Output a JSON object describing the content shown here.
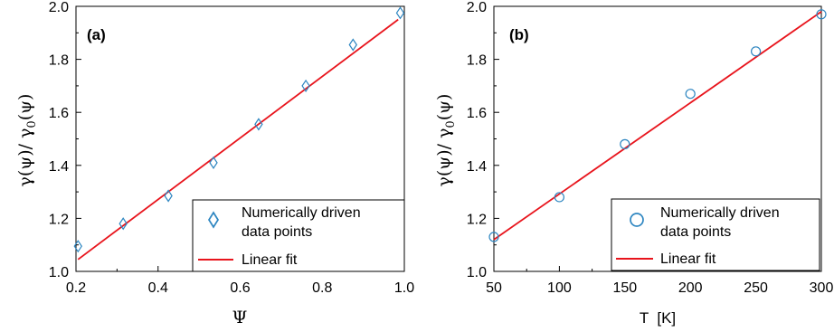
{
  "colors": {
    "points": "#2e86c1",
    "fit_line": "#e8141c",
    "axis": "#000000"
  },
  "chart_data": [
    {
      "type": "scatter",
      "panel_label": "(a)",
      "xlabel": "Ψ",
      "ylabel": "γ(ψ)/ γ0(ψ)",
      "xlim": [
        0.2,
        1.0
      ],
      "ylim": [
        1.0,
        2.0
      ],
      "xticks": [
        "0.2",
        "0.4",
        "0.6",
        "0.8",
        "1.0"
      ],
      "yticks": [
        "1.0",
        "1.2",
        "1.4",
        "1.6",
        "1.8",
        "2.0"
      ],
      "marker": "diamond",
      "legend_position": "bottom-right",
      "series": [
        {
          "name": "Numerically driven data points",
          "x": [
            0.205,
            0.315,
            0.425,
            0.535,
            0.645,
            0.76,
            0.875,
            0.99
          ],
          "y": [
            1.095,
            1.18,
            1.285,
            1.41,
            1.555,
            1.7,
            1.855,
            1.975
          ]
        },
        {
          "name": "Linear fit",
          "x": [
            0.205,
            0.985
          ],
          "y": [
            1.045,
            1.95
          ]
        }
      ],
      "legend": [
        "Numerically driven",
        "data points",
        "Linear fit"
      ]
    },
    {
      "type": "scatter",
      "panel_label": "(b)",
      "xlabel": "T  [K]",
      "ylabel": "γ(ψ)/ γ0(ψ)",
      "xlim": [
        50,
        300
      ],
      "ylim": [
        1.0,
        2.0
      ],
      "xticks": [
        "50",
        "100",
        "150",
        "200",
        "250",
        "300"
      ],
      "yticks": [
        "1.0",
        "1.2",
        "1.4",
        "1.6",
        "1.8",
        "2.0"
      ],
      "marker": "circle",
      "legend_position": "bottom-right",
      "series": [
        {
          "name": "Numerically driven data points",
          "x": [
            50,
            100,
            150,
            200,
            250,
            300
          ],
          "y": [
            1.13,
            1.28,
            1.48,
            1.67,
            1.83,
            1.97
          ]
        },
        {
          "name": "Linear fit",
          "x": [
            50,
            300
          ],
          "y": [
            1.12,
            1.98
          ]
        }
      ],
      "legend": [
        "Numerically driven",
        "data points",
        "Linear fit"
      ]
    }
  ]
}
